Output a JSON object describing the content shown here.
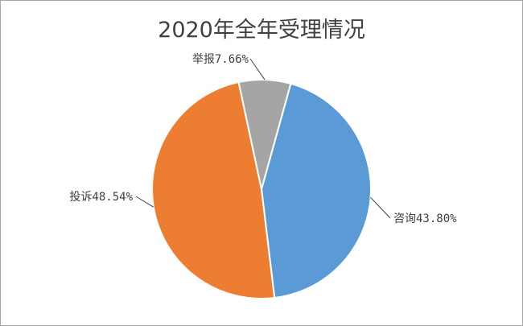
{
  "chart_data": {
    "type": "pie",
    "title": "2020年全年受理情况",
    "slices": [
      {
        "label": "咨询",
        "value": 43.8,
        "display": "咨询43.80%",
        "color": "#5b9bd5"
      },
      {
        "label": "投诉",
        "value": 48.54,
        "display": "投诉48.54%",
        "color": "#ed7d31"
      },
      {
        "label": "举报",
        "value": 7.66,
        "display": "举报7.66%",
        "color": "#a5a5a5"
      }
    ],
    "legend": "none",
    "data_labels": "outside-with-leader-lines"
  }
}
